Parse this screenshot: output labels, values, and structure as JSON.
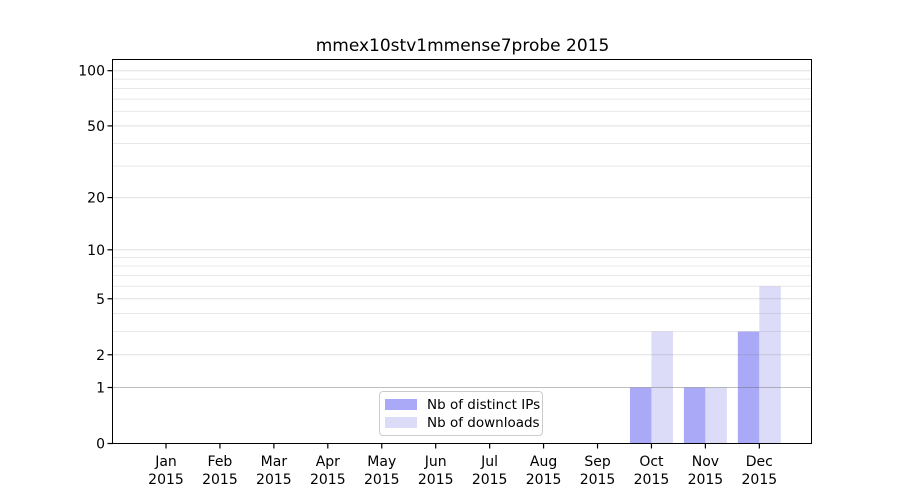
{
  "chart_data": {
    "type": "bar",
    "title": "mmex10stv1mmense7probe 2015",
    "categories": [
      "Jan",
      "Feb",
      "Mar",
      "Apr",
      "May",
      "Jun",
      "Jul",
      "Aug",
      "Sep",
      "Oct",
      "Nov",
      "Dec"
    ],
    "category_year": "2015",
    "series": [
      {
        "name": "Nb of distinct IPs",
        "color": "#a9a9f7",
        "values": [
          0,
          0,
          0,
          0,
          0,
          0,
          0,
          0,
          0,
          1,
          1,
          3
        ]
      },
      {
        "name": "Nb of downloads",
        "color": "#dcdcf9",
        "values": [
          0,
          0,
          0,
          0,
          0,
          0,
          0,
          0,
          0,
          3,
          1,
          6
        ]
      }
    ],
    "xlabel": "",
    "ylabel": "",
    "yscale": "log1p",
    "ylim": [
      0,
      114
    ],
    "y_ticks": [
      0,
      1,
      2,
      5,
      10,
      20,
      50,
      100
    ],
    "y_minor_ticks": [
      3,
      4,
      6,
      7,
      8,
      9,
      30,
      40,
      60,
      70,
      80,
      90
    ],
    "grid": "horizontal",
    "legend": {
      "position": "lower center",
      "entries": [
        "Nb of distinct IPs",
        "Nb of downloads"
      ]
    },
    "colors": {
      "bar_distinct_ips": "#a9a9f7",
      "bar_downloads": "#dcdcf9",
      "grid_minor": "#ececec",
      "grid_major": "#e4e4e4",
      "grid_unit_line": "#c4c4c4",
      "axis": "#000000",
      "tick_text": "#000000",
      "legend_border": "#cccccc",
      "background": "#ffffff"
    }
  }
}
